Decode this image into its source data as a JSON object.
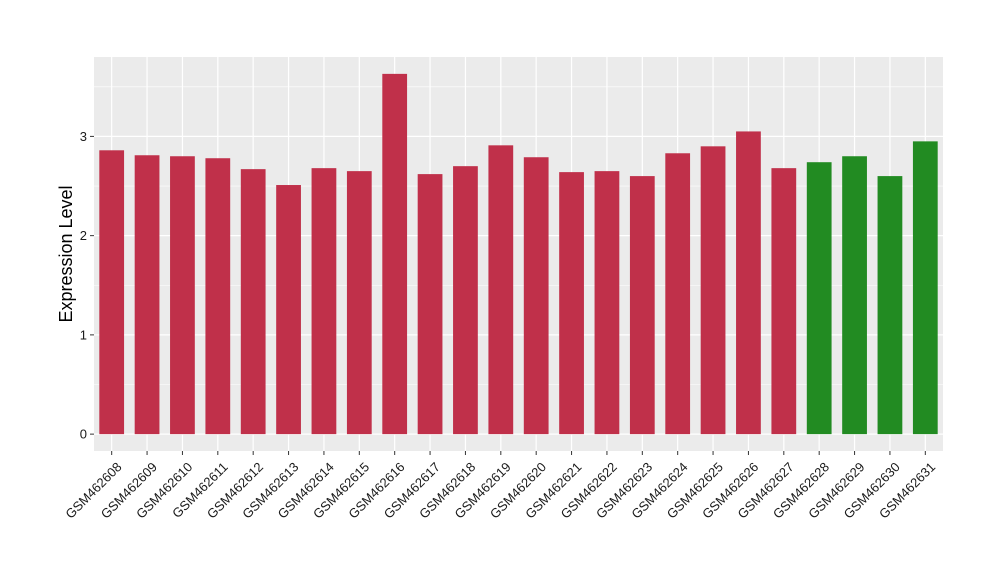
{
  "chart_data": {
    "type": "bar",
    "title": "",
    "xlabel": "",
    "ylabel": "Expression Level",
    "ylim": [
      -0.17,
      3.8
    ],
    "yticks": [
      0,
      1,
      2,
      3
    ],
    "grid": true,
    "categories": [
      "GSM462608",
      "GSM462609",
      "GSM462610",
      "GSM462611",
      "GSM462612",
      "GSM462613",
      "GSM462614",
      "GSM462615",
      "GSM462616",
      "GSM462617",
      "GSM462618",
      "GSM462619",
      "GSM462620",
      "GSM462621",
      "GSM462622",
      "GSM462623",
      "GSM462624",
      "GSM462625",
      "GSM462626",
      "GSM462627",
      "GSM462628",
      "GSM462629",
      "GSM462630",
      "GSM462631"
    ],
    "values": [
      2.86,
      2.81,
      2.8,
      2.78,
      2.67,
      2.51,
      2.68,
      2.65,
      3.63,
      2.62,
      2.7,
      2.91,
      2.79,
      2.64,
      2.65,
      2.6,
      2.83,
      2.9,
      3.05,
      2.68,
      2.74,
      2.8,
      2.6,
      2.95
    ],
    "groups": [
      "red",
      "red",
      "red",
      "red",
      "red",
      "red",
      "red",
      "red",
      "red",
      "red",
      "red",
      "red",
      "red",
      "red",
      "red",
      "red",
      "red",
      "red",
      "red",
      "red",
      "green",
      "green",
      "green",
      "green"
    ],
    "colors": {
      "red": "#c0304a",
      "green": "#228b22",
      "panel": "#ebebeb",
      "grid": "#ffffff"
    }
  }
}
